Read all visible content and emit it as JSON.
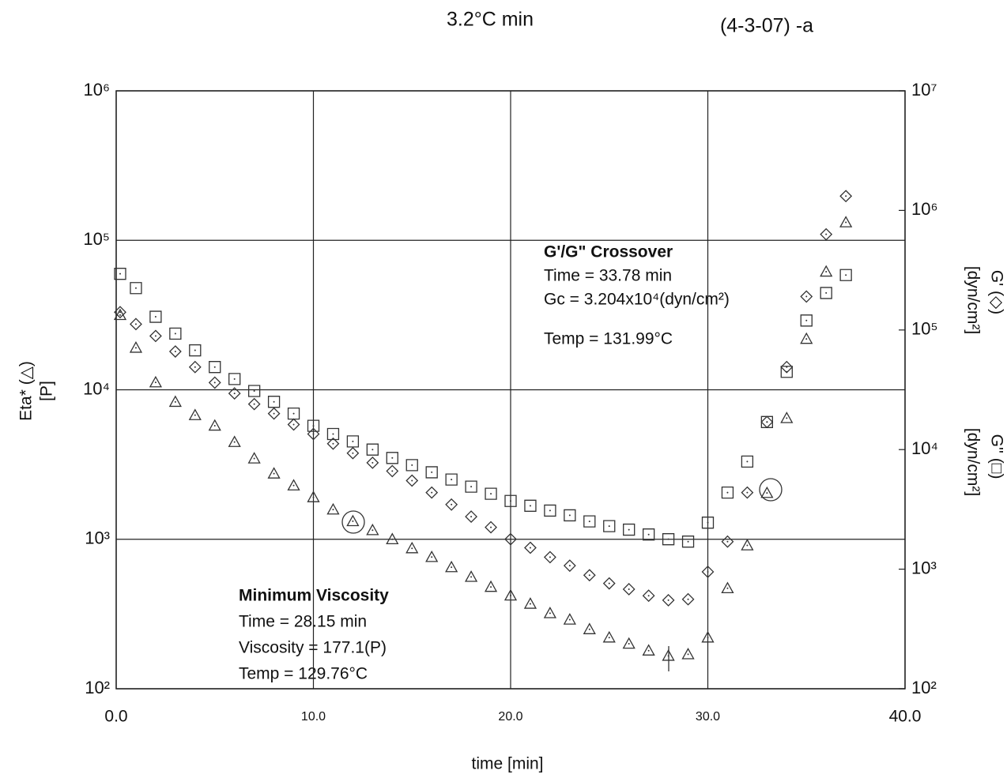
{
  "chart_data": {
    "type": "scatter",
    "title": "3.2°C min",
    "subtitle": "(4-3-07) -a",
    "x_label": "time [min]",
    "y_label": [
      "Eta* (△)",
      "[P]"
    ],
    "y2_label": [
      [
        "G' (◇)",
        "[dyn/cm²]"
      ],
      [
        "G'' (□)",
        "[dyn/cm²]"
      ]
    ],
    "xlim": [
      0,
      40
    ],
    "xticks": [
      {
        "value": 0,
        "label": "0.0"
      },
      {
        "value": 10,
        "label": "10.0"
      },
      {
        "value": 20,
        "label": "20.0"
      },
      {
        "value": 30,
        "label": "30.0"
      },
      {
        "value": 40,
        "label": "40.0"
      }
    ],
    "ylim": [
      100,
      1000000
    ],
    "yticks": [
      {
        "value": 100,
        "label": "10²"
      },
      {
        "value": 1000,
        "label": "10³"
      },
      {
        "value": 10000,
        "label": "10⁴"
      },
      {
        "value": 100000,
        "label": "10⁵"
      },
      {
        "value": 1000000,
        "label": "10⁶"
      }
    ],
    "y2lim": [
      100,
      10000000
    ],
    "y2ticks": [
      {
        "value": 100,
        "label": "10²"
      },
      {
        "value": 1000,
        "label": "10³"
      },
      {
        "value": 10000,
        "label": "10⁴"
      },
      {
        "value": 100000,
        "label": "10⁵"
      },
      {
        "value": 1000000,
        "label": "10⁶"
      },
      {
        "value": 10000000,
        "label": "10⁷"
      }
    ],
    "ylog": true,
    "y2log": true,
    "grid": true,
    "x": [
      0.2,
      1,
      2,
      3,
      4,
      5,
      6,
      7,
      8,
      9,
      10,
      11,
      12,
      13,
      14,
      15,
      16,
      17,
      18,
      19,
      20,
      21,
      22,
      23,
      24,
      25,
      26,
      27,
      28,
      29,
      30,
      31,
      32,
      33,
      34,
      35,
      36,
      37
    ],
    "series": [
      {
        "name": "Eta*",
        "marker": "triangle",
        "color": "#333333",
        "axis": "y",
        "values": [
          31600,
          19100,
          11200,
          8300,
          6760,
          5750,
          4470,
          3470,
          2750,
          2290,
          1910,
          1580,
          1320,
          1150,
          1000,
          870,
          760,
          650,
          560,
          480,
          420,
          370,
          320,
          290,
          250,
          220,
          200,
          180,
          166,
          170,
          220,
          470,
          910,
          2040,
          6460,
          21900,
          61700,
          131800
        ]
      },
      {
        "name": "G'",
        "marker": "diamond",
        "color": "#333333",
        "axis": "y2",
        "values": [
          141000,
          112000,
          89100,
          66100,
          49000,
          36300,
          29500,
          24000,
          20000,
          16200,
          13500,
          11200,
          9330,
          7760,
          6610,
          5500,
          4370,
          3470,
          2750,
          2240,
          1780,
          1510,
          1260,
          1070,
          890,
          760,
          680,
          600,
          550,
          560,
          950,
          1700,
          4370,
          17000,
          49000,
          190500,
          631000,
          1318000
        ]
      },
      {
        "name": "G''",
        "marker": "square",
        "color": "#333333",
        "axis": "y2",
        "values": [
          295000,
          224000,
          129000,
          93300,
          67600,
          49000,
          38900,
          30900,
          25100,
          20000,
          15800,
          13500,
          11700,
          10000,
          8510,
          7410,
          6460,
          5620,
          4900,
          4270,
          3720,
          3390,
          3090,
          2820,
          2510,
          2290,
          2140,
          1950,
          1780,
          1700,
          2450,
          4370,
          7940,
          17000,
          44700,
          120000,
          204000,
          288000
        ]
      }
    ],
    "annotations": [
      {
        "title": "G'/G\" Crossover",
        "lines": [
          "Time = 33.78 min",
          "Gc = 3.204x10⁴(dyn/cm²)",
          "Temp = 131.99°C"
        ]
      },
      {
        "title": "Minimum Viscosity",
        "lines": [
          "Time = 28.15 min",
          "Viscosity = 177.1(P)",
          "Temp = 129.76°C"
        ]
      }
    ]
  }
}
